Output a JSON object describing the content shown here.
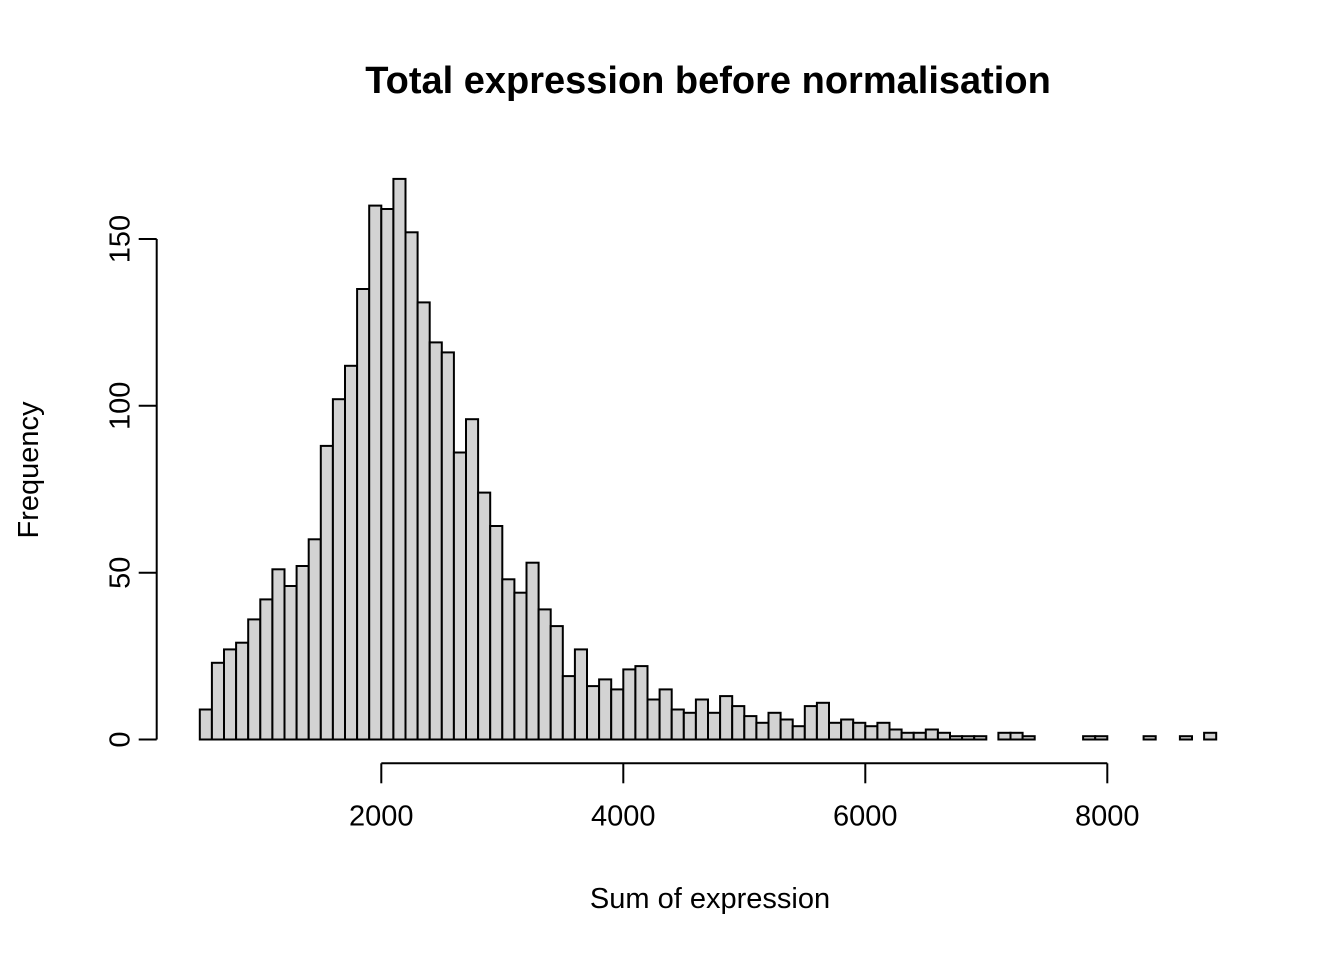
{
  "chart_data": {
    "type": "bar",
    "subtype": "histogram",
    "title": "Total expression before normalisation",
    "xlabel": "Sum of expression",
    "ylabel": "Frequency",
    "bin_start": 500,
    "bin_width": 100,
    "counts": [
      9,
      23,
      27,
      29,
      36,
      42,
      51,
      46,
      52,
      60,
      88,
      102,
      112,
      135,
      160,
      159,
      168,
      152,
      131,
      119,
      116,
      86,
      96,
      74,
      64,
      48,
      44,
      53,
      39,
      34,
      19,
      27,
      16,
      18,
      15,
      21,
      22,
      12,
      15,
      9,
      8,
      12,
      8,
      13,
      10,
      7,
      5,
      8,
      6,
      4,
      10,
      11,
      5,
      6,
      5,
      4,
      5,
      3,
      2,
      2,
      3,
      2,
      1,
      1,
      1,
      0,
      2,
      2,
      1,
      0,
      0,
      0,
      0,
      1,
      1,
      0,
      0,
      0,
      1,
      0,
      0,
      1,
      0,
      2
    ],
    "x_ticks": [
      2000,
      4000,
      6000,
      8000
    ],
    "x_tick_labels": [
      "2000",
      "4000",
      "6000",
      "8000"
    ],
    "y_ticks": [
      0,
      50,
      100,
      150
    ],
    "y_tick_labels": [
      "0",
      "50",
      "100",
      "150"
    ],
    "xlim": [
      500,
      8900
    ],
    "ylim": [
      0,
      168
    ],
    "grid": false,
    "legend": null,
    "bar_fill": "#d3d3d3",
    "bar_border": "#000000",
    "axis_color": "#000000",
    "background": "#ffffff"
  }
}
